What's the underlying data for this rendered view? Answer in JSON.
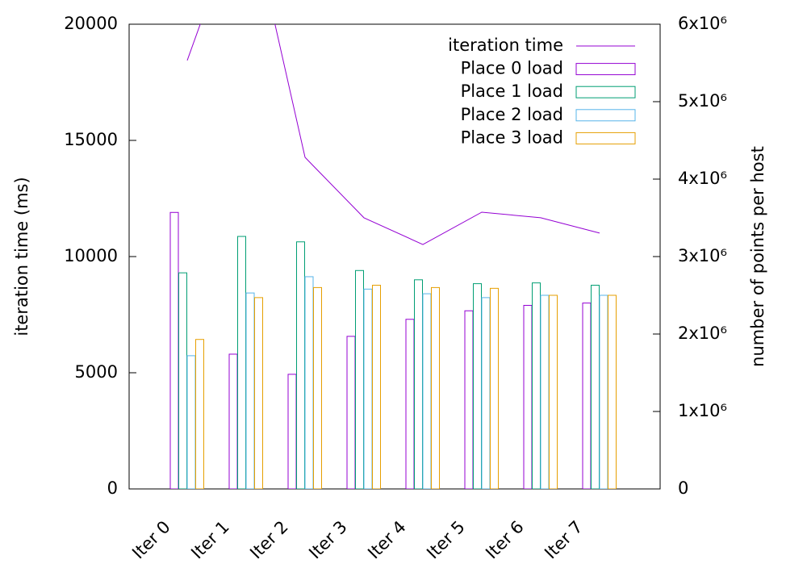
{
  "chart_data": {
    "type": "bar",
    "ylabel": "iteration time (ms)",
    "y2label": "number of points per host",
    "categories": [
      "Iter 0",
      "Iter 1",
      "Iter 2",
      "Iter 3",
      "Iter 4",
      "Iter 5",
      "Iter 6",
      "Iter 7"
    ],
    "ylim": [
      0,
      20000
    ],
    "yticks": [
      0,
      5000,
      10000,
      15000,
      20000
    ],
    "y2lim": [
      0,
      6000000
    ],
    "y2ticks": [
      0,
      {
        "value": 1000000,
        "label": "1x10⁶"
      },
      {
        "value": 2000000,
        "label": "2x10⁶"
      },
      {
        "value": 3000000,
        "label": "3x10⁶"
      },
      {
        "value": 4000000,
        "label": "4x10⁶"
      },
      {
        "value": 5000000,
        "label": "5x10⁶"
      },
      {
        "value": 6000000,
        "label": "6x10⁶"
      }
    ],
    "legend": "top-right",
    "series": [
      {
        "name": "iteration time",
        "type": "line",
        "color": "#9400d3",
        "values": [
          18440,
          25500,
          14270,
          11670,
          10520,
          11910,
          11670,
          11010
        ]
      },
      {
        "name": "Place 0 load",
        "type": "bar",
        "axis": "y2",
        "color": "#9400d3",
        "values": [
          3570000,
          1740000,
          1480000,
          1970000,
          2190000,
          2300000,
          2370000,
          2400000
        ]
      },
      {
        "name": "Place 1 load",
        "type": "bar",
        "axis": "y2",
        "color": "#009e73",
        "values": [
          2790000,
          3260000,
          3190000,
          2820000,
          2700000,
          2650000,
          2660000,
          2630000
        ]
      },
      {
        "name": "Place 2 load",
        "type": "bar",
        "axis": "y2",
        "color": "#56b4e9",
        "values": [
          1720000,
          2530000,
          2740000,
          2580000,
          2520000,
          2470000,
          2500000,
          2500000
        ]
      },
      {
        "name": "Place 3 load",
        "type": "bar",
        "axis": "y2",
        "color": "#e69f00",
        "values": [
          1930000,
          2470000,
          2600000,
          2630000,
          2600000,
          2590000,
          2500000,
          2500000
        ]
      }
    ]
  }
}
